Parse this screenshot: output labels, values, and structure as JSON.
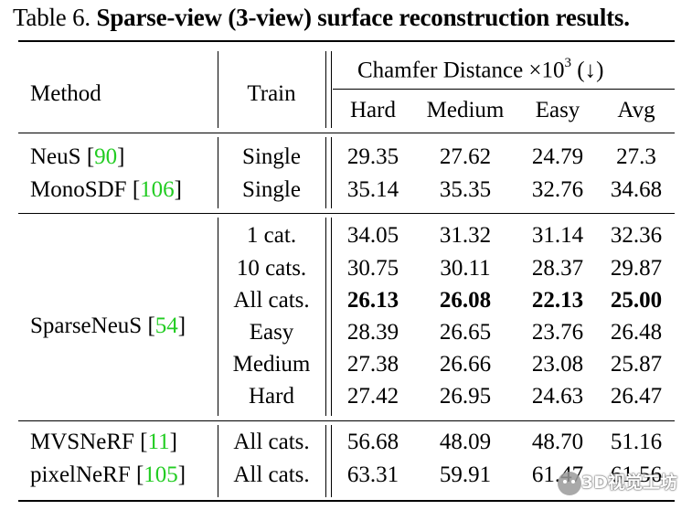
{
  "caption": {
    "label": "Table 6.",
    "title": "Sparse-view (3-view) surface reconstruction results."
  },
  "header": {
    "method": "Method",
    "train": "Train",
    "metric_group": "Chamfer Distance ×10",
    "metric_exp": "3",
    "metric_arrow": "(↓)",
    "columns": [
      "Hard",
      "Medium",
      "Easy",
      "Avg"
    ]
  },
  "groups": [
    {
      "rows": [
        {
          "method": "NeuS",
          "cite": "90",
          "train": "Single",
          "values": [
            "29.35",
            "27.62",
            "24.79",
            "27.3"
          ],
          "bold": false
        },
        {
          "method": "MonoSDF",
          "cite": "106",
          "train": "Single",
          "values": [
            "35.14",
            "35.35",
            "32.76",
            "34.68"
          ],
          "bold": false
        }
      ]
    },
    {
      "method": "SparseNeuS",
      "cite": "54",
      "rows": [
        {
          "train": "1 cat.",
          "values": [
            "34.05",
            "31.32",
            "31.14",
            "32.36"
          ],
          "bold": false
        },
        {
          "train": "10 cats.",
          "values": [
            "30.75",
            "30.11",
            "28.37",
            "29.87"
          ],
          "bold": false
        },
        {
          "train": "All cats.",
          "values": [
            "26.13",
            "26.08",
            "22.13",
            "25.00"
          ],
          "bold": true
        },
        {
          "train": "Easy",
          "values": [
            "28.39",
            "26.65",
            "23.76",
            "26.48"
          ],
          "bold": false
        },
        {
          "train": "Medium",
          "values": [
            "27.38",
            "26.66",
            "23.08",
            "25.87"
          ],
          "bold": false
        },
        {
          "train": "Hard",
          "values": [
            "27.42",
            "26.95",
            "24.63",
            "26.47"
          ],
          "bold": false
        }
      ]
    },
    {
      "rows": [
        {
          "method": "MVSNeRF",
          "cite": "11",
          "train": "All cats.",
          "values": [
            "56.68",
            "48.09",
            "48.70",
            "51.16"
          ],
          "bold": false
        },
        {
          "method": "pixelNeRF",
          "cite": "105",
          "train": "All cats.",
          "values": [
            "63.31",
            "59.91",
            "61.47",
            "61.56"
          ],
          "bold": false
        }
      ]
    }
  ],
  "watermark": {
    "text": "3D视觉工坊"
  },
  "colors": {
    "cite": "#22cc22",
    "text": "#000000"
  }
}
